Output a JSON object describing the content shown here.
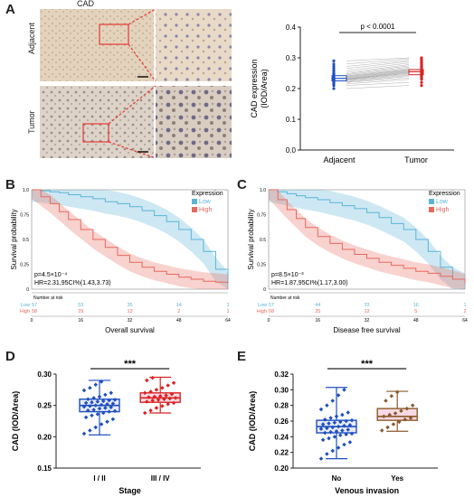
{
  "panel_labels": [
    "A",
    "B",
    "C",
    "D",
    "E"
  ],
  "panel_a": {
    "title": "CAD",
    "row_labels": [
      "Adjacent",
      "Tumor"
    ],
    "tissue_colors": {
      "adjacent": "#e0cfb8",
      "tumor": "#ddd4cc",
      "highlight": "#e53935"
    }
  },
  "chart_data": [
    {
      "id": "A-paired",
      "type": "scatter",
      "title": "",
      "xlabel": "",
      "ylabel": "CAD expression\n(IOD/Area)",
      "ylabel_lines": [
        "CAD expression",
        "(IOD/Area)"
      ],
      "categories": [
        "Adjacent",
        "Tumor"
      ],
      "ylim": [
        0.0,
        0.4
      ],
      "yticks": [
        "0.0",
        "0.1",
        "0.2",
        "0.3",
        "0.4"
      ],
      "annotation": "p < 0.0001",
      "series": [
        {
          "name": "Adjacent",
          "color": "#1f4fbf",
          "box": {
            "q1": 0.225,
            "median": 0.233,
            "q3": 0.242
          },
          "values": [
            0.2,
            0.21,
            0.215,
            0.22,
            0.222,
            0.225,
            0.227,
            0.229,
            0.23,
            0.231,
            0.232,
            0.234,
            0.236,
            0.238,
            0.24,
            0.242,
            0.245,
            0.248,
            0.252,
            0.258,
            0.265,
            0.272,
            0.28,
            0.29
          ]
        },
        {
          "name": "Tumor",
          "color": "#d92323",
          "box": {
            "q1": 0.245,
            "median": 0.255,
            "q3": 0.262
          },
          "values": [
            0.21,
            0.22,
            0.23,
            0.235,
            0.24,
            0.243,
            0.246,
            0.249,
            0.251,
            0.253,
            0.255,
            0.257,
            0.259,
            0.261,
            0.263,
            0.266,
            0.27,
            0.274,
            0.278,
            0.283,
            0.288,
            0.292,
            0.297,
            0.3
          ]
        }
      ]
    },
    {
      "id": "B-km",
      "type": "line",
      "xlabel": "Overall survival",
      "ylabel": "Survival probability",
      "xlim": [
        0,
        64
      ],
      "xticks": [
        "0",
        "16",
        "32",
        "48",
        "64"
      ],
      "yticks": [
        "0",
        "0.25",
        "0.5",
        "0.75",
        "1.0"
      ],
      "legend_title": "Expression",
      "legend_position": "top-right",
      "stats": [
        "p=4.5×10⁻⁴",
        "HR=2.31,95CI%(1.43,3.73)"
      ],
      "risk_title": "Number at risk",
      "series": [
        {
          "name": "Low",
          "color": "#5ab4d6",
          "x": [
            0,
            3,
            6,
            9,
            12,
            16,
            20,
            24,
            28,
            32,
            36,
            40,
            44,
            48,
            52,
            56,
            60,
            64
          ],
          "values": [
            1.0,
            0.99,
            0.98,
            0.97,
            0.95,
            0.93,
            0.91,
            0.88,
            0.86,
            0.83,
            0.79,
            0.74,
            0.68,
            0.6,
            0.5,
            0.38,
            0.2,
            0.05
          ],
          "risk": [
            "57",
            "53",
            "35",
            "14",
            "1"
          ]
        },
        {
          "name": "High",
          "color": "#e8695e",
          "x": [
            0,
            3,
            6,
            9,
            12,
            16,
            20,
            24,
            28,
            32,
            36,
            40,
            44,
            48,
            52,
            56,
            60,
            64
          ],
          "values": [
            1.0,
            0.93,
            0.86,
            0.78,
            0.7,
            0.6,
            0.5,
            0.42,
            0.34,
            0.27,
            0.22,
            0.18,
            0.15,
            0.12,
            0.1,
            0.08,
            0.07,
            0.06
          ],
          "risk": [
            "58",
            "29",
            "13",
            "2",
            "1"
          ]
        }
      ]
    },
    {
      "id": "C-km",
      "type": "line",
      "xlabel": "Disease free survival",
      "ylabel": "Survival probability",
      "xlim": [
        0,
        64
      ],
      "xticks": [
        "0",
        "16",
        "32",
        "48",
        "64"
      ],
      "yticks": [
        "0",
        "0.25",
        "0.5",
        "0.75",
        "1.0"
      ],
      "legend_title": "Expression",
      "legend_position": "top-right",
      "stats": [
        "p=8.5×10⁻³",
        "HR=1.87,95CI%(1.17,3.00)"
      ],
      "risk_title": "Number at risk",
      "series": [
        {
          "name": "Low",
          "color": "#5ab4d6",
          "x": [
            0,
            3,
            6,
            9,
            12,
            16,
            20,
            24,
            28,
            32,
            36,
            40,
            44,
            48,
            52,
            56,
            60,
            64
          ],
          "values": [
            1.0,
            0.98,
            0.96,
            0.94,
            0.92,
            0.9,
            0.87,
            0.84,
            0.81,
            0.77,
            0.72,
            0.66,
            0.6,
            0.5,
            0.38,
            0.22,
            0.1,
            0.04
          ],
          "risk": [
            "57",
            "44",
            "33",
            "16",
            "1"
          ]
        },
        {
          "name": "High",
          "color": "#e8695e",
          "x": [
            0,
            3,
            6,
            9,
            12,
            16,
            20,
            24,
            28,
            32,
            36,
            40,
            44,
            48,
            52,
            56,
            60,
            64
          ],
          "values": [
            1.0,
            0.9,
            0.8,
            0.71,
            0.62,
            0.53,
            0.46,
            0.4,
            0.35,
            0.31,
            0.27,
            0.24,
            0.21,
            0.18,
            0.16,
            0.13,
            0.1,
            0.06
          ],
          "risk": [
            "58",
            "25",
            "12",
            "5",
            "2"
          ]
        }
      ]
    },
    {
      "id": "D-box",
      "type": "scatter",
      "xlabel": "Stage",
      "ylabel": "CAD (IOD/Area)",
      "categories": [
        "I / II",
        "III / IV"
      ],
      "ylim": [
        0.15,
        0.3
      ],
      "yticks": [
        "0.15",
        "0.20",
        "0.25",
        "0.30"
      ],
      "annotation": "***",
      "series": [
        {
          "name": "I / II",
          "color": "#1f4fbf",
          "fill": "#e7eaf7",
          "box": {
            "min": 0.203,
            "q1": 0.24,
            "median": 0.25,
            "q3": 0.26,
            "max": 0.29
          },
          "values": [
            0.205,
            0.21,
            0.215,
            0.22,
            0.224,
            0.228,
            0.231,
            0.234,
            0.236,
            0.238,
            0.24,
            0.241,
            0.242,
            0.243,
            0.245,
            0.246,
            0.247,
            0.248,
            0.249,
            0.25,
            0.251,
            0.252,
            0.253,
            0.254,
            0.255,
            0.256,
            0.257,
            0.258,
            0.259,
            0.26,
            0.262,
            0.264,
            0.267,
            0.27,
            0.274,
            0.278,
            0.283,
            0.288
          ]
        },
        {
          "name": "III / IV",
          "color": "#d92323",
          "fill": "#f8d9e4",
          "box": {
            "min": 0.238,
            "q1": 0.255,
            "median": 0.262,
            "q3": 0.27,
            "max": 0.295
          },
          "values": [
            0.238,
            0.242,
            0.246,
            0.249,
            0.252,
            0.254,
            0.256,
            0.258,
            0.259,
            0.26,
            0.261,
            0.262,
            0.263,
            0.264,
            0.265,
            0.266,
            0.268,
            0.27,
            0.272,
            0.275,
            0.278,
            0.282,
            0.286,
            0.29,
            0.294
          ]
        }
      ]
    },
    {
      "id": "E-box",
      "type": "scatter",
      "xlabel": "Venous invasion",
      "ylabel": "CAD (IOD/Area)",
      "categories": [
        "No",
        "Yes"
      ],
      "ylim": [
        0.2,
        0.32
      ],
      "yticks": [
        "0.20",
        "0.22",
        "0.24",
        "0.26",
        "0.28",
        "0.30",
        "0.32"
      ],
      "annotation": "***",
      "series": [
        {
          "name": "No",
          "color": "#1f4fbf",
          "fill": "#e7eaf7",
          "box": {
            "min": 0.212,
            "q1": 0.245,
            "median": 0.253,
            "q3": 0.261,
            "max": 0.303
          },
          "values": [
            0.212,
            0.218,
            0.222,
            0.226,
            0.23,
            0.233,
            0.236,
            0.238,
            0.24,
            0.242,
            0.243,
            0.244,
            0.245,
            0.246,
            0.247,
            0.248,
            0.249,
            0.25,
            0.251,
            0.252,
            0.253,
            0.254,
            0.255,
            0.256,
            0.257,
            0.258,
            0.259,
            0.26,
            0.261,
            0.262,
            0.264,
            0.266,
            0.268,
            0.271,
            0.275,
            0.28,
            0.286,
            0.293,
            0.3
          ]
        },
        {
          "name": "Yes",
          "color": "#8b5a2b",
          "fill": "#f8d9e4",
          "box": {
            "min": 0.247,
            "q1": 0.261,
            "median": 0.266,
            "q3": 0.276,
            "max": 0.298
          },
          "values": [
            0.248,
            0.252,
            0.256,
            0.259,
            0.262,
            0.264,
            0.266,
            0.268,
            0.27,
            0.273,
            0.276,
            0.28,
            0.286,
            0.292,
            0.297
          ]
        }
      ]
    }
  ]
}
